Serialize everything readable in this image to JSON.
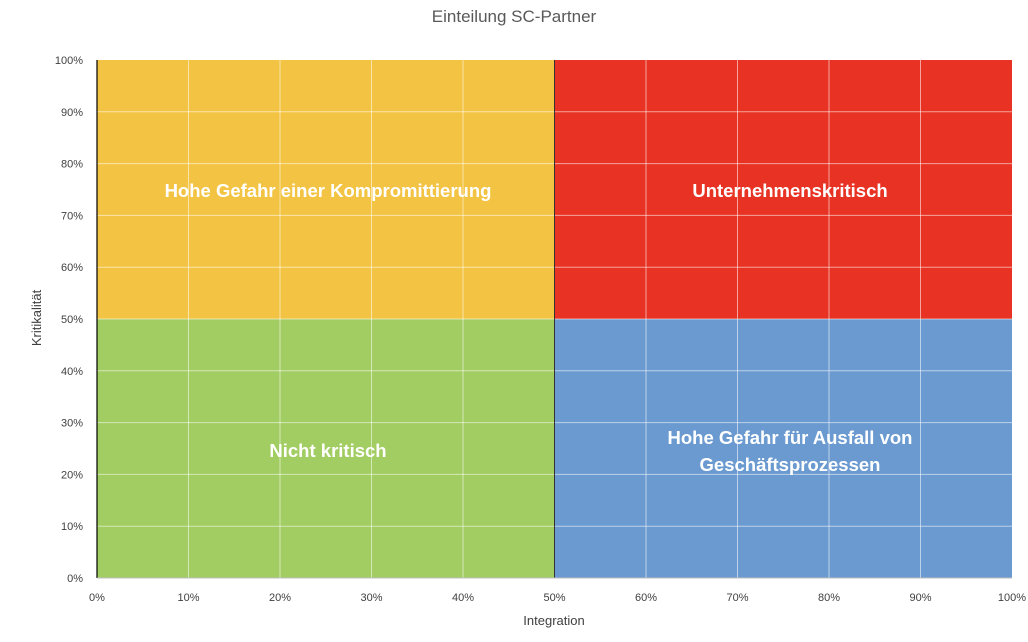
{
  "chart_data": {
    "type": "quadrant",
    "title": "Einteilung SC-Partner",
    "xlabel": "Integration",
    "ylabel": "Kritikalität",
    "xlim": [
      0,
      1
    ],
    "ylim": [
      0,
      1
    ],
    "grid": true,
    "x_ticks": [
      0,
      0.1,
      0.2,
      0.3,
      0.4,
      0.5,
      0.6,
      0.7,
      0.8,
      0.9,
      1.0
    ],
    "y_ticks": [
      0,
      0.1,
      0.2,
      0.3,
      0.4,
      0.5,
      0.6,
      0.7,
      0.8,
      0.9,
      1.0
    ],
    "x_tick_labels": [
      "0%",
      "10%",
      "20%",
      "30%",
      "40%",
      "50%",
      "60%",
      "70%",
      "80%",
      "90%",
      "100%"
    ],
    "y_tick_labels": [
      "0%",
      "10%",
      "20%",
      "30%",
      "40%",
      "50%",
      "60%",
      "70%",
      "80%",
      "90%",
      "100%"
    ],
    "quadrants": [
      {
        "name": "Hohe Gefahr einer Kompromittierung",
        "lines": [
          "Hohe Gefahr einer Kompromittierung"
        ],
        "x_range": [
          0,
          0.5
        ],
        "y_range": [
          0.5,
          1.0
        ],
        "color": "#F3C443"
      },
      {
        "name": "Unternehmenskritisch",
        "lines": [
          "Unternehmenskritisch"
        ],
        "x_range": [
          0.5,
          1.0
        ],
        "y_range": [
          0.5,
          1.0
        ],
        "color": "#E83324"
      },
      {
        "name": "Nicht kritisch",
        "lines": [
          "Nicht kritisch"
        ],
        "x_range": [
          0,
          0.5
        ],
        "y_range": [
          0,
          0.5
        ],
        "color": "#A2CD62"
      },
      {
        "name": "Hohe Gefahr für Ausfall von Geschäftsprozessen",
        "lines": [
          "Hohe Gefahr für Ausfall von",
          "Geschäftsprozessen"
        ],
        "x_range": [
          0.5,
          1.0
        ],
        "y_range": [
          0,
          0.5
        ],
        "color": "#6B9AD0"
      }
    ]
  }
}
